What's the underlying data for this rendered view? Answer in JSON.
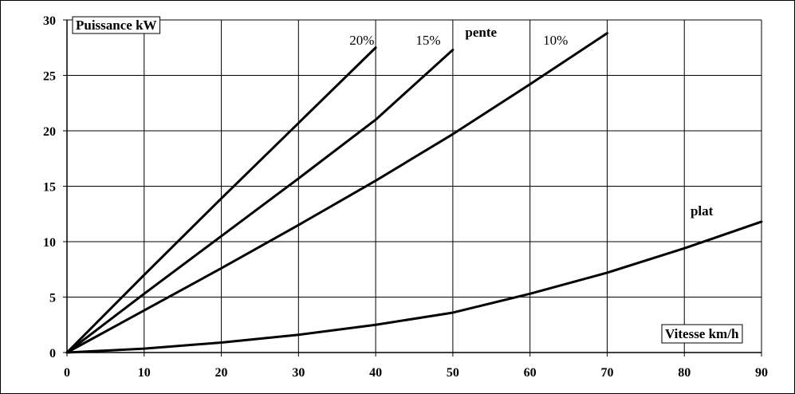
{
  "chart_data": {
    "type": "line",
    "title": "",
    "xlabel": "Vitesse km/h",
    "ylabel": "Puissance kW",
    "xlim": [
      0,
      90
    ],
    "ylim": [
      0,
      30
    ],
    "x_ticks": [
      0,
      10,
      20,
      30,
      40,
      50,
      60,
      70,
      80,
      90
    ],
    "y_ticks": [
      0,
      5,
      10,
      15,
      20,
      25,
      30
    ],
    "grid": true,
    "series": [
      {
        "name": "20%",
        "x": [
          0,
          10,
          20,
          30,
          40
        ],
        "y": [
          0,
          7.0,
          13.9,
          20.7,
          27.5
        ]
      },
      {
        "name": "15%",
        "x": [
          0,
          10,
          20,
          30,
          40,
          50
        ],
        "y": [
          0,
          5.3,
          10.5,
          15.7,
          21.0,
          27.3
        ]
      },
      {
        "name": "10%",
        "x": [
          0,
          10,
          20,
          30,
          40,
          50,
          60,
          70
        ],
        "y": [
          0,
          3.8,
          7.6,
          11.5,
          15.5,
          19.7,
          24.2,
          28.8
        ]
      },
      {
        "name": "plat",
        "x": [
          0,
          10,
          20,
          30,
          40,
          50,
          60,
          70,
          80,
          90
        ],
        "y": [
          0,
          0.35,
          0.9,
          1.6,
          2.5,
          3.6,
          5.3,
          7.2,
          9.4,
          11.8
        ]
      }
    ],
    "annotations": {
      "pente": "pente"
    }
  }
}
